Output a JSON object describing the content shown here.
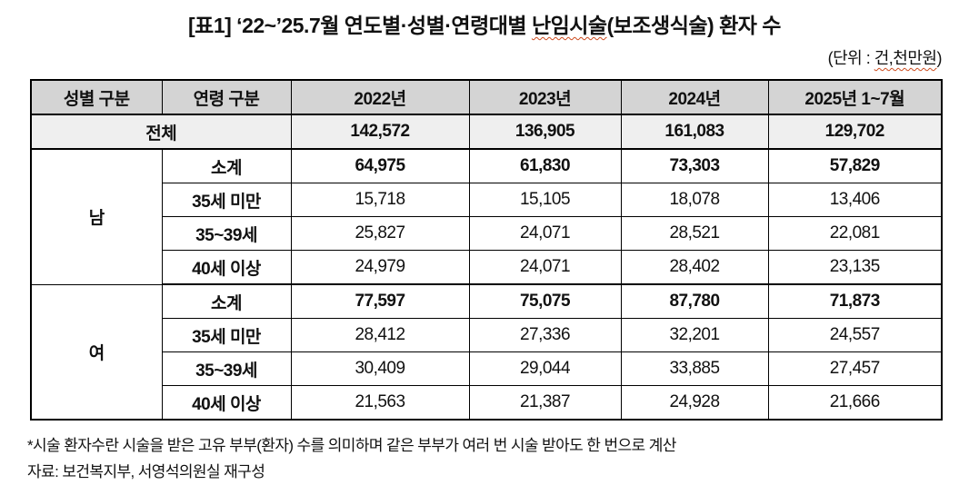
{
  "title": {
    "prefix": "[표1] ‘22~’25.7월 연도별·성별·연령대별 ",
    "highlight": "난임시술",
    "suffix": "(보조생식술) 환자 수"
  },
  "unit_note": {
    "prefix": "(단위 : ",
    "highlight": "건,천만원",
    "suffix": ")"
  },
  "table": {
    "headers": [
      "성별 구분",
      "연령 구분",
      "2022년",
      "2023년",
      "2024년",
      "2025년 1~7월"
    ],
    "total_row": {
      "label": "전체",
      "values": [
        "142,572",
        "136,905",
        "161,083",
        "129,702"
      ]
    },
    "groups": [
      {
        "gender": "남",
        "rows": [
          {
            "label": "소계",
            "values": [
              "64,975",
              "61,830",
              "73,303",
              "57,829"
            ]
          },
          {
            "label": "35세 미만",
            "values": [
              "15,718",
              "15,105",
              "18,078",
              "13,406"
            ]
          },
          {
            "label": "35~39세",
            "values": [
              "25,827",
              "24,071",
              "28,521",
              "22,081"
            ]
          },
          {
            "label": "40세 이상",
            "values": [
              "24,979",
              "24,071",
              "28,402",
              "23,135"
            ]
          }
        ]
      },
      {
        "gender": "여",
        "rows": [
          {
            "label": "소계",
            "values": [
              "77,597",
              "75,075",
              "87,780",
              "71,873"
            ]
          },
          {
            "label": "35세 미만",
            "values": [
              "28,412",
              "27,336",
              "32,201",
              "24,557"
            ]
          },
          {
            "label": "35~39세",
            "values": [
              "30,409",
              "29,044",
              "33,885",
              "27,457"
            ]
          },
          {
            "label": "40세 이상",
            "values": [
              "21,563",
              "21,387",
              "24,928",
              "21,666"
            ]
          }
        ]
      }
    ]
  },
  "footnotes": {
    "note": "*시술 환자수란 시술을 받은 고유 부부(환자) 수를 의미하며 같은 부부가 여러 번 시술 받아도 한 번으로 계산",
    "source": "자료: 보건복지부, 서영석의원실 재구성"
  },
  "colors": {
    "header_bg": "#d4d4d4",
    "total_row_bg": "#efefef",
    "border": "#000000",
    "spellcheck_underline": "#cc4a1d"
  }
}
